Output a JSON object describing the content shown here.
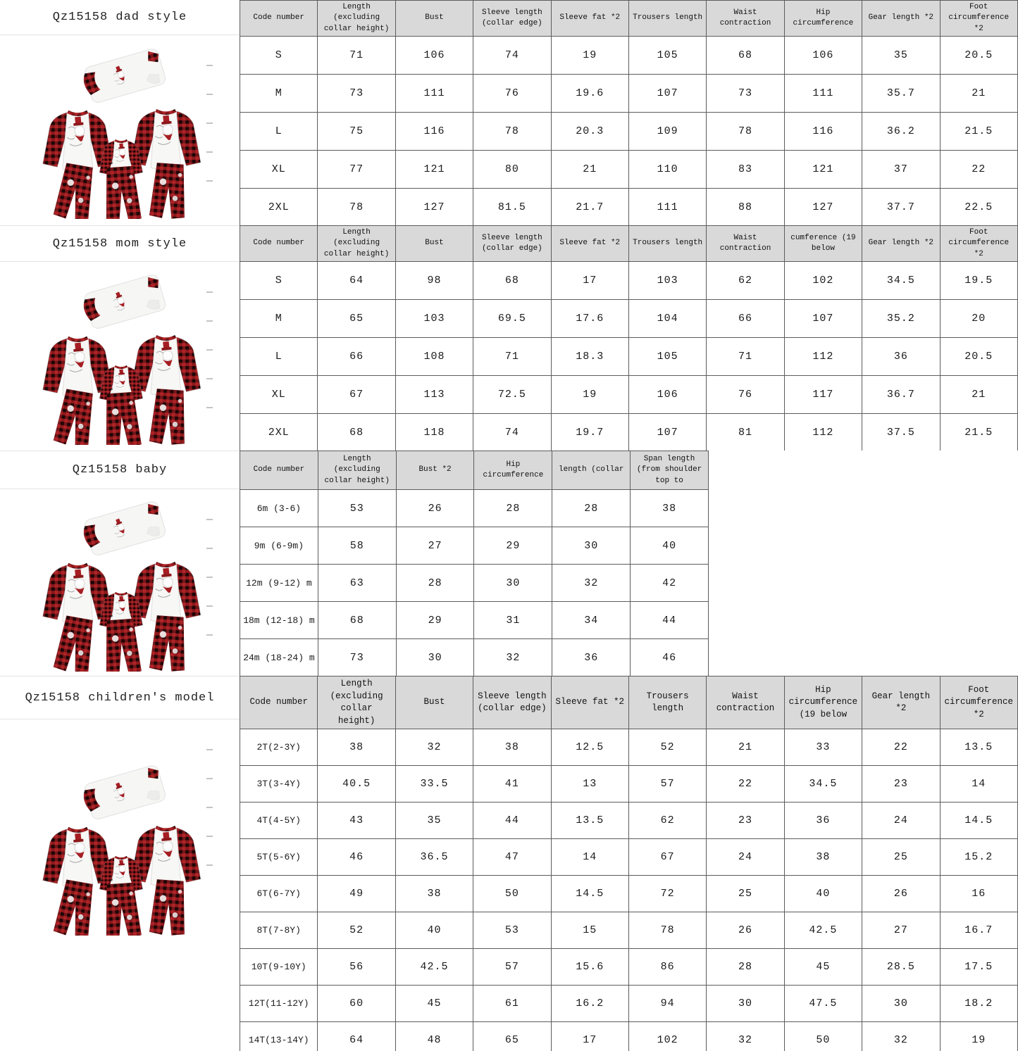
{
  "colors": {
    "header_bg": "#d9d9d9",
    "grid_border": "#5c5c5c",
    "plaid_red": "#b02428",
    "plaid_dark": "#1d0506",
    "accent_red": "#a51e23",
    "label_text": "#222222"
  },
  "icons": {
    "pajama-set-photo": "inline-svg drawing of 3 snowman plaid pajama tops and 3 plaid pants",
    "tick-mark": "small gray dash"
  },
  "sections": [
    {
      "label": "Qz15158 dad style",
      "image_alt": "family snowman plaid pajama set - dad",
      "table": {
        "header": [
          "Code number",
          "Length (excluding collar height)",
          "Bust",
          "Sleeve length (collar edge)",
          "Sleeve fat *2",
          "Trousers length",
          "Waist contraction",
          "Hip circumference",
          "Gear length *2",
          "Foot circumference *2"
        ],
        "rows": [
          [
            "S",
            "71",
            "106",
            "74",
            "19",
            "105",
            "68",
            "106",
            "35",
            "20.5"
          ],
          [
            "M",
            "73",
            "111",
            "76",
            "19.6",
            "107",
            "73",
            "111",
            "35.7",
            "21"
          ],
          [
            "L",
            "75",
            "116",
            "78",
            "20.3",
            "109",
            "78",
            "116",
            "36.2",
            "21.5"
          ],
          [
            "XL",
            "77",
            "121",
            "80",
            "21",
            "110",
            "83",
            "121",
            "37",
            "22"
          ],
          [
            "2XL",
            "78",
            "127",
            "81.5",
            "21.7",
            "111",
            "88",
            "127",
            "37.7",
            "22.5"
          ]
        ]
      }
    },
    {
      "label": "Qz15158 mom style",
      "image_alt": "family snowman plaid pajama set - mom",
      "table": {
        "header": [
          "Code number",
          "Length (excluding collar height)",
          "Bust",
          "Sleeve length (collar edge)",
          "Sleeve fat *2",
          "Trousers length",
          "Waist contraction",
          "cumference (19 below",
          "Gear length *2",
          "Foot circumference *2"
        ],
        "rows": [
          [
            "S",
            "64",
            "98",
            "68",
            "17",
            "103",
            "62",
            "102",
            "34.5",
            "19.5"
          ],
          [
            "M",
            "65",
            "103",
            "69.5",
            "17.6",
            "104",
            "66",
            "107",
            "35.2",
            "20"
          ],
          [
            "L",
            "66",
            "108",
            "71",
            "18.3",
            "105",
            "71",
            "112",
            "36",
            "20.5"
          ],
          [
            "XL",
            "67",
            "113",
            "72.5",
            "19",
            "106",
            "76",
            "117",
            "36.7",
            "21"
          ],
          [
            "2XL",
            "68",
            "118",
            "74",
            "19.7",
            "107",
            "81",
            "112",
            "37.5",
            "21.5"
          ]
        ]
      }
    },
    {
      "label": "Qz15158 baby",
      "image_alt": "family snowman plaid pajama set - baby",
      "table": {
        "header": [
          "Code number",
          "Length (excluding collar height)",
          "Bust *2",
          "Hip circumference",
          "length (collar",
          "Span length (from shoulder top to"
        ],
        "rows": [
          [
            "6m (3-6)",
            "53",
            "26",
            "28",
            "28",
            "38"
          ],
          [
            "9m (6-9m)",
            "58",
            "27",
            "29",
            "30",
            "40"
          ],
          [
            "12m (9-12) m",
            "63",
            "28",
            "30",
            "32",
            "42"
          ],
          [
            "18m (12-18) m",
            "68",
            "29",
            "31",
            "34",
            "44"
          ],
          [
            "24m (18-24) m",
            "73",
            "30",
            "32",
            "36",
            "46"
          ]
        ]
      }
    },
    {
      "label": "Qz15158 children's model",
      "image_alt": "family snowman plaid pajama set - children",
      "table": {
        "header": [
          "Code number",
          "Length (excluding collar height)",
          "Bust",
          "Sleeve length (collar edge)",
          "Sleeve fat *2",
          "Trousers length",
          "Waist contraction",
          "Hip circumference (19 below",
          "Gear length *2",
          "Foot circumference *2"
        ],
        "rows": [
          [
            "2T(2-3Y)",
            "38",
            "32",
            "38",
            "12.5",
            "52",
            "21",
            "33",
            "22",
            "13.5"
          ],
          [
            "3T(3-4Y)",
            "40.5",
            "33.5",
            "41",
            "13",
            "57",
            "22",
            "34.5",
            "23",
            "14"
          ],
          [
            "4T(4-5Y)",
            "43",
            "35",
            "44",
            "13.5",
            "62",
            "23",
            "36",
            "24",
            "14.5"
          ],
          [
            "5T(5-6Y)",
            "46",
            "36.5",
            "47",
            "14",
            "67",
            "24",
            "38",
            "25",
            "15.2"
          ],
          [
            "6T(6-7Y)",
            "49",
            "38",
            "50",
            "14.5",
            "72",
            "25",
            "40",
            "26",
            "16"
          ],
          [
            "8T(7-8Y)",
            "52",
            "40",
            "53",
            "15",
            "78",
            "26",
            "42.5",
            "27",
            "16.7"
          ],
          [
            "10T(9-10Y)",
            "56",
            "42.5",
            "57",
            "15.6",
            "86",
            "28",
            "45",
            "28.5",
            "17.5"
          ],
          [
            "12T(11-12Y)",
            "60",
            "45",
            "61",
            "16.2",
            "94",
            "30",
            "47.5",
            "30",
            "18.2"
          ],
          [
            "14T(13-14Y)",
            "64",
            "48",
            "65",
            "17",
            "102",
            "32",
            "50",
            "32",
            "19"
          ]
        ]
      }
    }
  ]
}
